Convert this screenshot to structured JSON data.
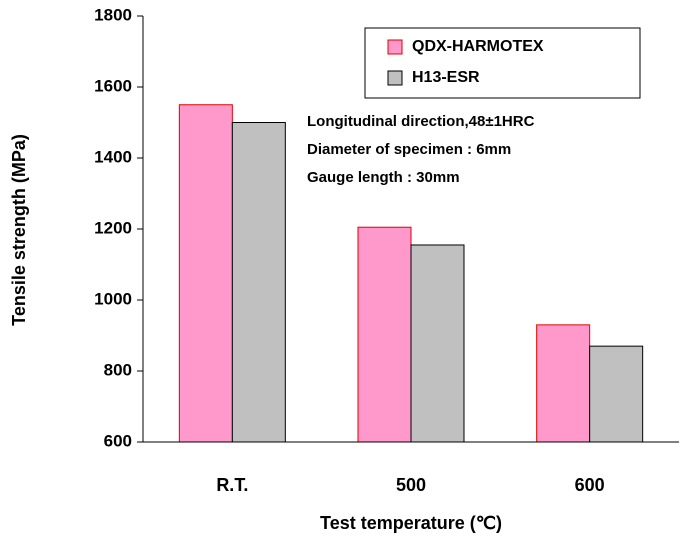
{
  "chart_data": {
    "type": "bar",
    "x_label": "Test temperature (℃)",
    "y_label": "Tensile strength (MPa)",
    "annotations": [
      "Longitudinal direction,48±1HRC",
      "Diameter of specimen : 6mm",
      "Gauge length : 30mm"
    ],
    "categories": [
      "R.T.",
      "500",
      "600"
    ],
    "series": [
      {
        "name": "QDX-HARMOTEX",
        "color": "#ff99cc",
        "edge": "#e00000",
        "values": [
          1550,
          1205,
          930
        ]
      },
      {
        "name": "H13-ESR",
        "color": "#c0c0c0",
        "edge": "#000000",
        "values": [
          1500,
          1155,
          870
        ]
      }
    ],
    "ylim": [
      600,
      1800
    ],
    "yticks": [
      600,
      800,
      1000,
      1200,
      1400,
      1600,
      1800
    ]
  }
}
